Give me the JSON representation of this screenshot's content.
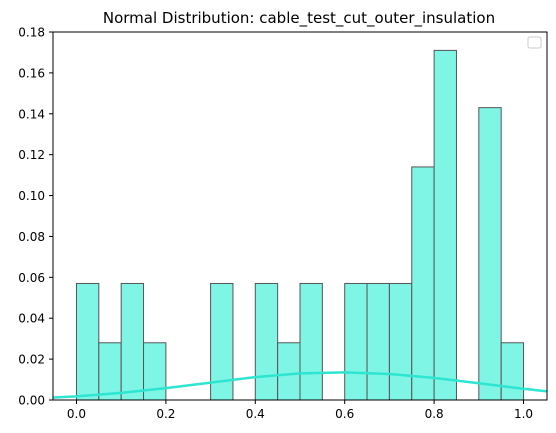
{
  "chart_data": {
    "type": "bar",
    "title": "Normal Distribution: cable_test_cut_outer_insulation",
    "xlabel": "",
    "ylabel": "",
    "xlim": [
      -0.0525,
      1.0525
    ],
    "ylim": [
      0,
      0.18
    ],
    "x_ticks": [
      0.0,
      0.2,
      0.4,
      0.6,
      0.8,
      1.0
    ],
    "x_tick_labels": [
      "0.0",
      "0.2",
      "0.4",
      "0.6",
      "0.8",
      "1.0"
    ],
    "y_ticks": [
      0.0,
      0.02,
      0.04,
      0.06,
      0.08,
      0.1,
      0.12,
      0.14,
      0.16,
      0.18
    ],
    "y_tick_labels": [
      "0.00",
      "0.02",
      "0.04",
      "0.06",
      "0.08",
      "0.10",
      "0.12",
      "0.14",
      "0.16",
      "0.18"
    ],
    "bin_edges": [
      0.0,
      0.05,
      0.1,
      0.15,
      0.2,
      0.25,
      0.3,
      0.35,
      0.4,
      0.45,
      0.5,
      0.55,
      0.6,
      0.65,
      0.7,
      0.75,
      0.8,
      0.85,
      0.9,
      0.95,
      1.0
    ],
    "values": [
      0.057,
      0.028,
      0.057,
      0.028,
      0,
      0,
      0.057,
      0,
      0.057,
      0.028,
      0.057,
      0,
      0.057,
      0.057,
      0.057,
      0.114,
      0.171,
      0,
      0.143,
      0.028
    ],
    "curve": {
      "x": [
        -0.05,
        0.0,
        0.1,
        0.2,
        0.3,
        0.4,
        0.5,
        0.6,
        0.7,
        0.8,
        0.9,
        1.0,
        1.05
      ],
      "y": [
        0.0012,
        0.0018,
        0.0035,
        0.0058,
        0.0085,
        0.0112,
        0.013,
        0.0135,
        0.0127,
        0.0108,
        0.0082,
        0.0055,
        0.0043
      ]
    },
    "grid": false,
    "legend": "top-right (empty)",
    "colors": {
      "bar_fill": "#7ff5e6",
      "bar_edge": "#555555",
      "curve": "#2de5d0",
      "axis": "#000000"
    }
  }
}
